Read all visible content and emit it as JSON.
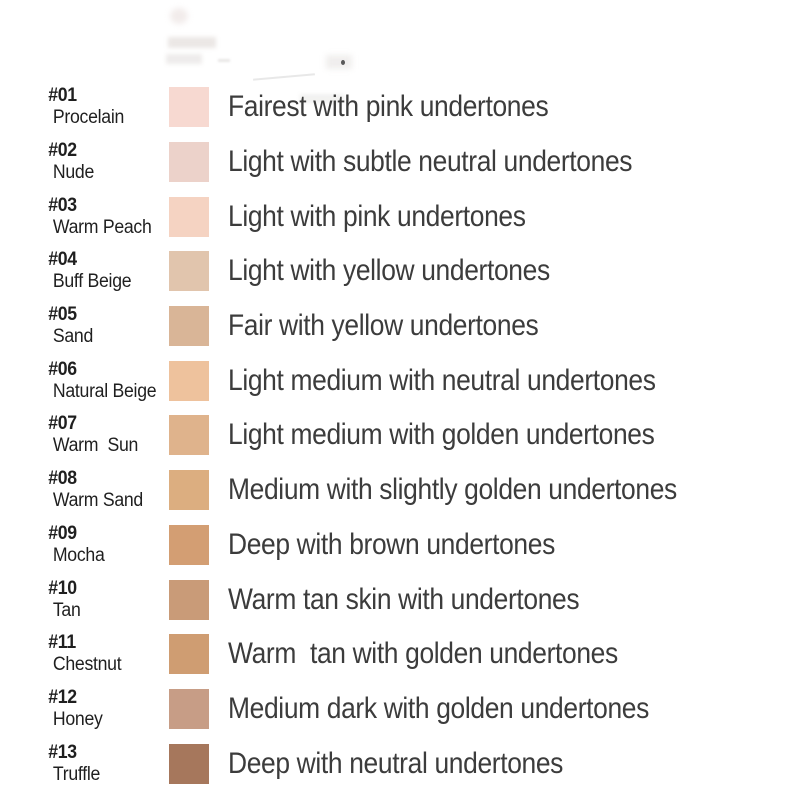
{
  "page": {
    "background": "#ffffff",
    "text_color_labels": "#1f1f1f",
    "text_color_descriptions": "#3c3c3c"
  },
  "chart_data": {
    "type": "table",
    "title": "",
    "columns": [
      "shade_number",
      "shade_name",
      "swatch_color",
      "description"
    ],
    "rows": [
      {
        "num": "#01",
        "name": "Procelain",
        "color": "#F7D9D1",
        "description": "Fairest with pink undertones"
      },
      {
        "num": "#02",
        "name": "Nude",
        "color": "#ECD2CA",
        "description": "Light with subtle neutral undertones"
      },
      {
        "num": "#03",
        "name": "Warm Peach",
        "color": "#F5D3C2",
        "description": "Light with pink undertones"
      },
      {
        "num": "#04",
        "name": "Buff Beige",
        "color": "#E1C5AD",
        "description": "Light with yellow undertones"
      },
      {
        "num": "#05",
        "name": "Sand",
        "color": "#D9B597",
        "description": "Fair with yellow undertones"
      },
      {
        "num": "#06",
        "name": "Natural Beige",
        "color": "#EEC29D",
        "description": "Light medium with neutral undertones"
      },
      {
        "num": "#07",
        "name": "Warm  Sun",
        "color": "#DFB38C",
        "description": "Light medium with golden undertones"
      },
      {
        "num": "#08",
        "name": "Warm Sand",
        "color": "#DCAE80",
        "description": "Medium with slightly golden undertones"
      },
      {
        "num": "#09",
        "name": "Mocha",
        "color": "#D39E73",
        "description": "Deep with brown undertones"
      },
      {
        "num": "#10",
        "name": "Tan",
        "color": "#C99B78",
        "description": "Warm tan skin with undertones"
      },
      {
        "num": "#11",
        "name": "Chestnut",
        "color": "#CF9D72",
        "description": "Warm  tan with golden undertones"
      },
      {
        "num": "#12",
        "name": "Honey",
        "color": "#C79D86",
        "description": "Medium dark with golden undertones"
      },
      {
        "num": "#13",
        "name": "Truffle",
        "color": "#A6775C",
        "description": "Deep with neutral undertones"
      }
    ]
  }
}
